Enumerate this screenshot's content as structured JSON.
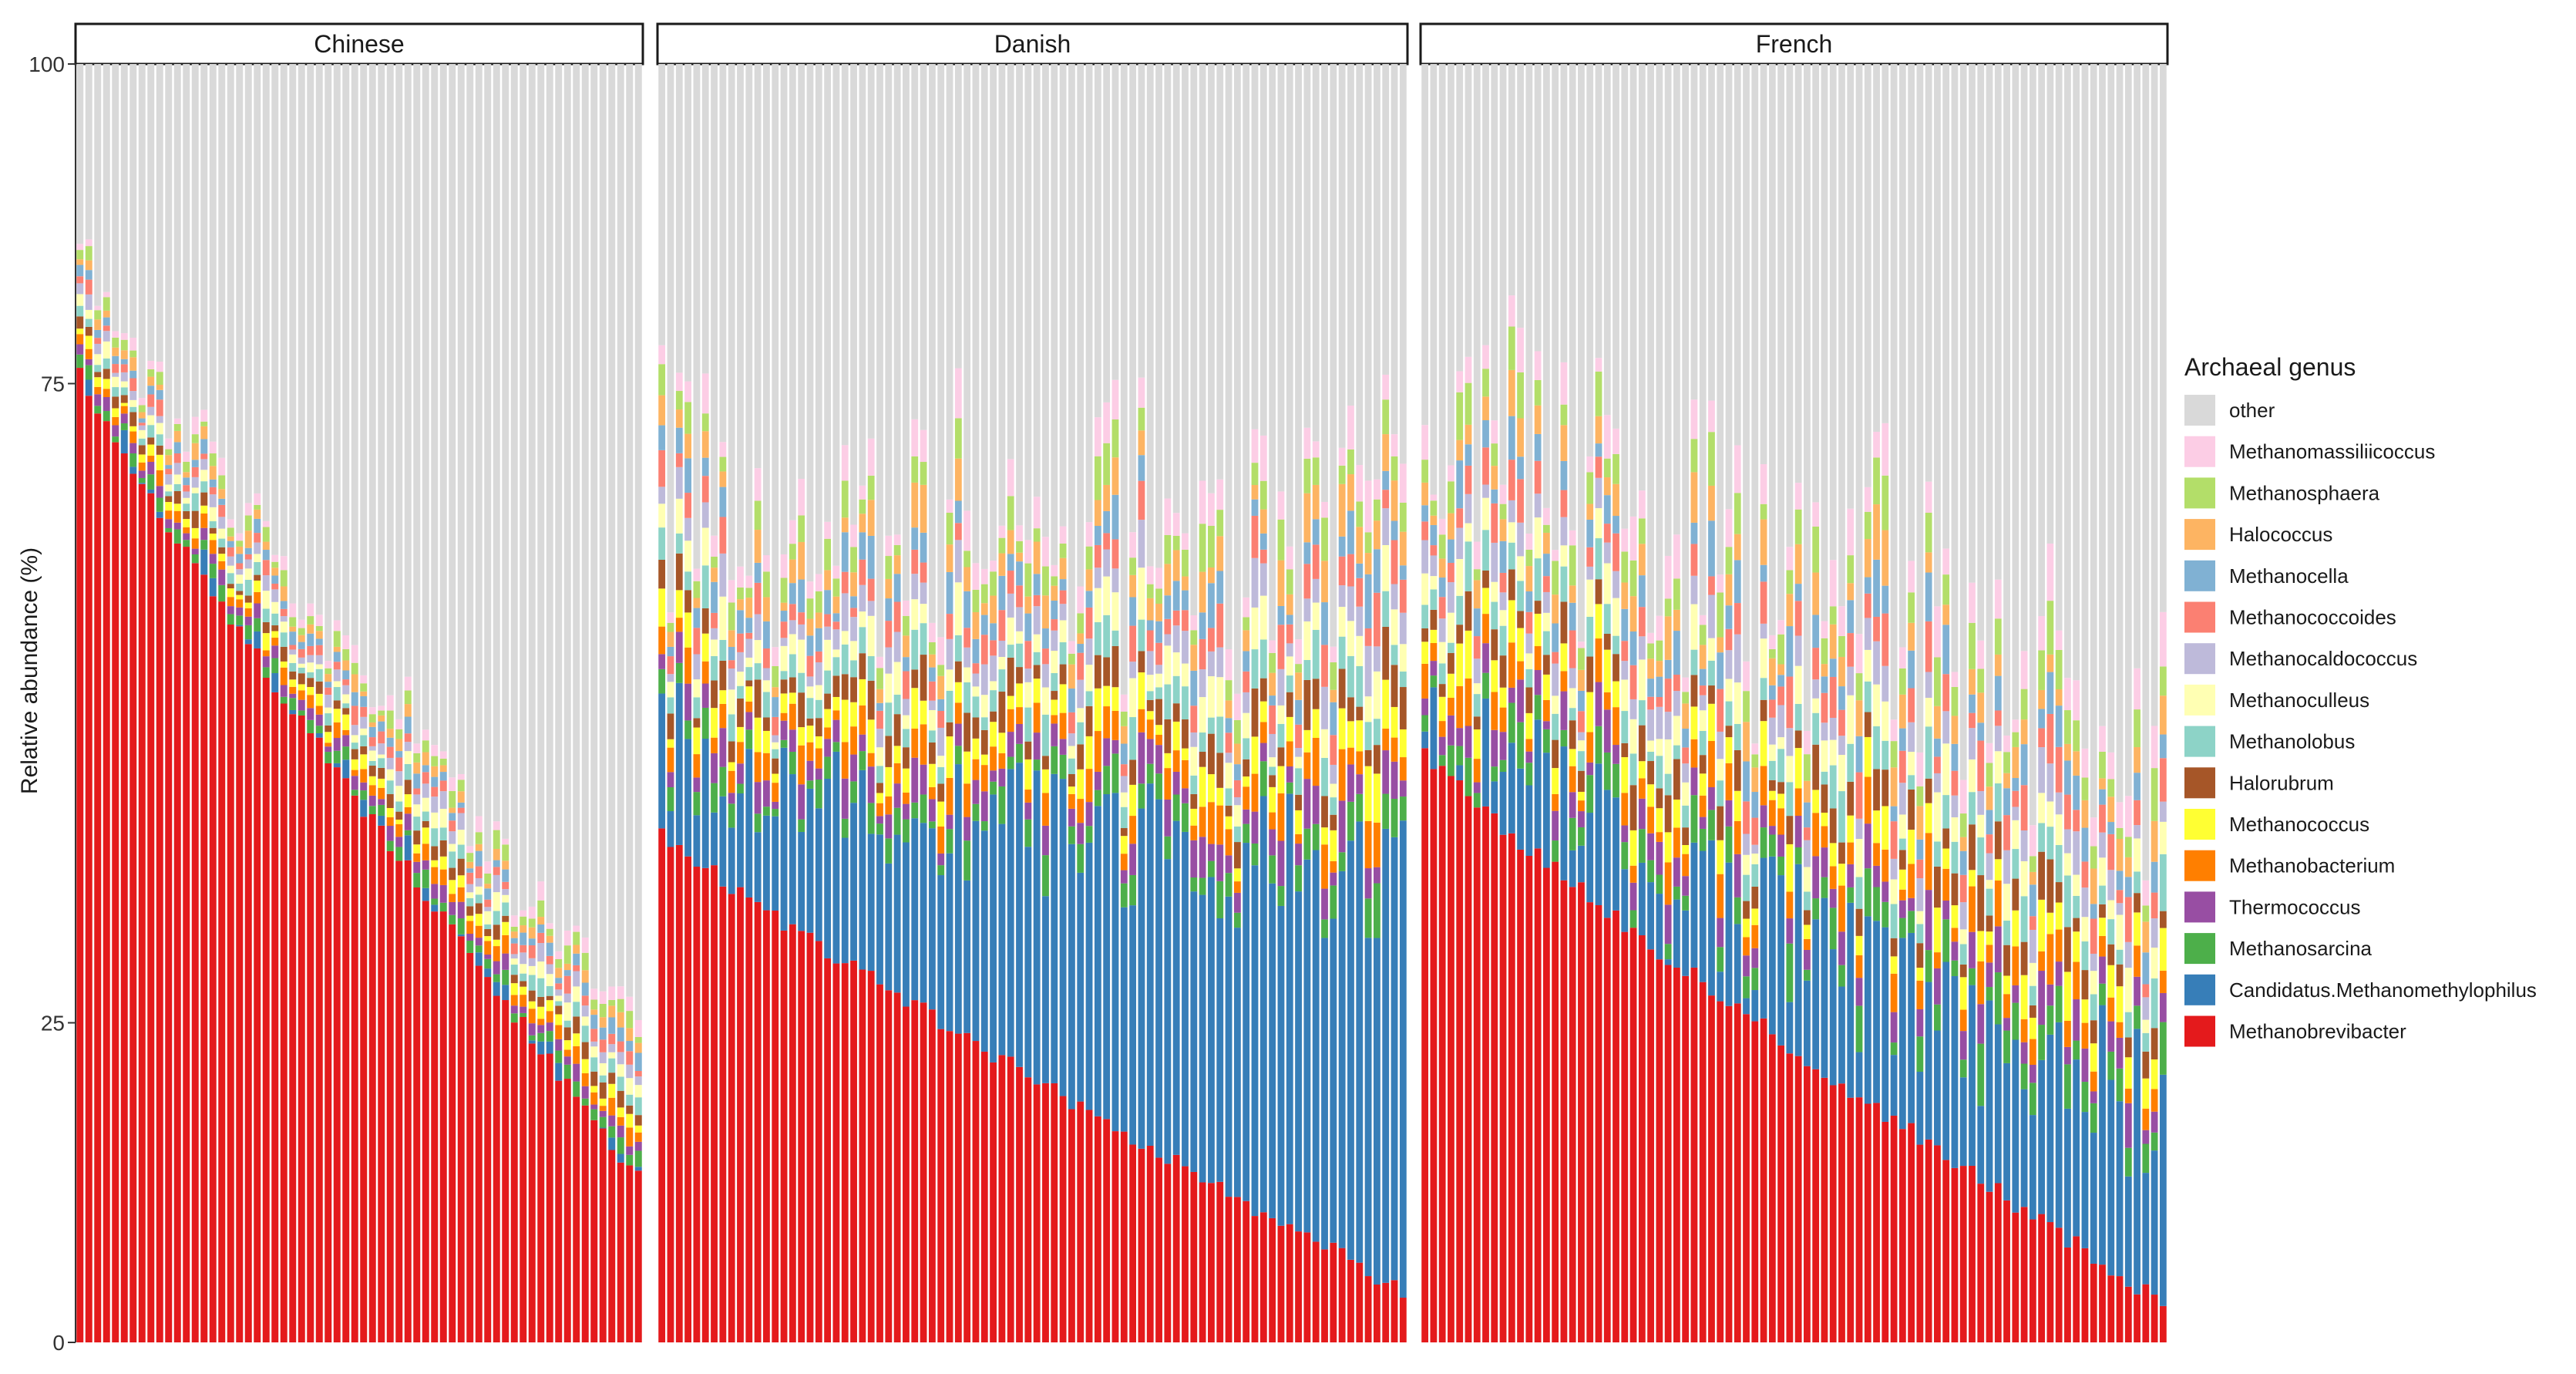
{
  "chart_data": {
    "type": "stacked-bar",
    "title": "",
    "xlabel": "",
    "ylabel": "Relative abundance (%)",
    "ylim": [
      0,
      100
    ],
    "yticks": [
      0,
      25,
      75,
      100
    ],
    "ytick_labels": [
      "0",
      "25",
      "75",
      "100"
    ],
    "legend_title": "Archaeal genus",
    "legend_position": "right",
    "genera": [
      {
        "name": "other",
        "color": "#d9d9d9"
      },
      {
        "name": "Methanomassiliicoccus",
        "color": "#fccde5"
      },
      {
        "name": "Methanosphaera",
        "color": "#b3de69"
      },
      {
        "name": "Halococcus",
        "color": "#fdb462"
      },
      {
        "name": "Methanocella",
        "color": "#80b1d3"
      },
      {
        "name": "Methanococcoides",
        "color": "#fb8072"
      },
      {
        "name": "Methanocaldococcus",
        "color": "#bebada"
      },
      {
        "name": "Methanoculleus",
        "color": "#ffffb3"
      },
      {
        "name": "Methanolobus",
        "color": "#8dd3c7"
      },
      {
        "name": "Halorubrum",
        "color": "#a65628"
      },
      {
        "name": "Methanococcus",
        "color": "#ffff33"
      },
      {
        "name": "Methanobacterium",
        "color": "#ff7f00"
      },
      {
        "name": "Thermococcus",
        "color": "#984ea3"
      },
      {
        "name": "Methanosarcina",
        "color": "#4daf4a"
      },
      {
        "name": "Candidatus.Methanomethylophilus",
        "color": "#377eb8"
      },
      {
        "name": "Methanobrevibacter",
        "color": "#e41a1c"
      }
    ],
    "panels": [
      {
        "name": "Chinese",
        "n_samples": 64,
        "methanobrevibacter_start": 76,
        "methanobrevibacter_end": 13,
        "candidatus_start": 0.3,
        "candidatus_end": 0.5,
        "minor_start": 9,
        "minor_end": 11,
        "noise": 1.5
      },
      {
        "name": "Danish",
        "n_samples": 86,
        "methanobrevibacter_start": 40,
        "methanobrevibacter_end": 4,
        "candidatus_start": 7,
        "candidatus_end": 32,
        "minor_start": 20,
        "minor_end": 28,
        "noise": 5
      },
      {
        "name": "French",
        "n_samples": 86,
        "methanobrevibacter_start": 46,
        "methanobrevibacter_end": 3,
        "candidatus_start": 2,
        "candidatus_end": 15,
        "minor_start": 24,
        "minor_end": 32,
        "noise": 6
      }
    ]
  }
}
